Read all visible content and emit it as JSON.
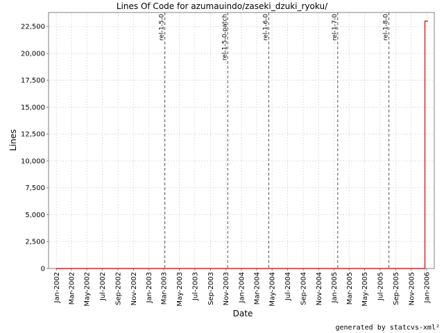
{
  "chart_data": {
    "type": "line",
    "title": "Lines Of Code for azumauindo/zaseki_dzuki_ryoku/",
    "xlabel": "Date",
    "ylabel": "Lines",
    "x_range": [
      "2001-12-01",
      "2006-01-31"
    ],
    "ylim": [
      0,
      23800
    ],
    "grid": true,
    "y_ticks": [
      0,
      2500,
      5000,
      7500,
      10000,
      12500,
      15000,
      17500,
      20000,
      22500
    ],
    "y_tick_labels": [
      "0",
      "2,500",
      "5,000",
      "7,500",
      "10,000",
      "12,500",
      "15,000",
      "17,500",
      "20,000",
      "22,500"
    ],
    "x_ticks": [
      "2002-01-01",
      "2002-03-01",
      "2002-05-01",
      "2002-07-01",
      "2002-09-01",
      "2002-11-01",
      "2003-01-01",
      "2003-03-01",
      "2003-05-01",
      "2003-07-01",
      "2003-09-01",
      "2003-11-01",
      "2004-01-01",
      "2004-03-01",
      "2004-05-01",
      "2004-07-01",
      "2004-09-01",
      "2004-11-01",
      "2005-01-01",
      "2005-03-01",
      "2005-05-01",
      "2005-07-01",
      "2005-09-01",
      "2005-11-01",
      "2006-01-01"
    ],
    "x_tick_labels": [
      "Jan-2002",
      "Mar-2002",
      "May-2002",
      "Jul-2002",
      "Sep-2002",
      "Nov-2002",
      "Jan-2003",
      "Mar-2003",
      "May-2003",
      "Jul-2003",
      "Sep-2003",
      "Nov-2003",
      "Jan-2004",
      "Mar-2004",
      "May-2004",
      "Jul-2004",
      "Sep-2004",
      "Nov-2004",
      "Jan-2005",
      "Mar-2005",
      "May-2005",
      "Jul-2005",
      "Sep-2005",
      "Nov-2005",
      "Jan-2006"
    ],
    "series": [
      {
        "color": "#cc0000",
        "points": [
          {
            "x": "2002-01-01",
            "y": 0
          },
          {
            "x": "2005-12-25",
            "y": 0
          },
          {
            "x": "2005-12-25",
            "y": 23000
          },
          {
            "x": "2006-01-05",
            "y": 23000
          }
        ]
      }
    ],
    "markers": [
      {
        "date": "2003-03-05",
        "label": "rel-1-5-0"
      },
      {
        "date": "2003-11-08",
        "label": "rel-1-5-0-patch"
      },
      {
        "date": "2004-04-18",
        "label": "rel-1-6-0"
      },
      {
        "date": "2005-01-15",
        "label": "rel-1-7-0"
      },
      {
        "date": "2005-08-05",
        "label": "rel-1-8-0"
      }
    ]
  },
  "footer": "generated by statcvs-xml²"
}
